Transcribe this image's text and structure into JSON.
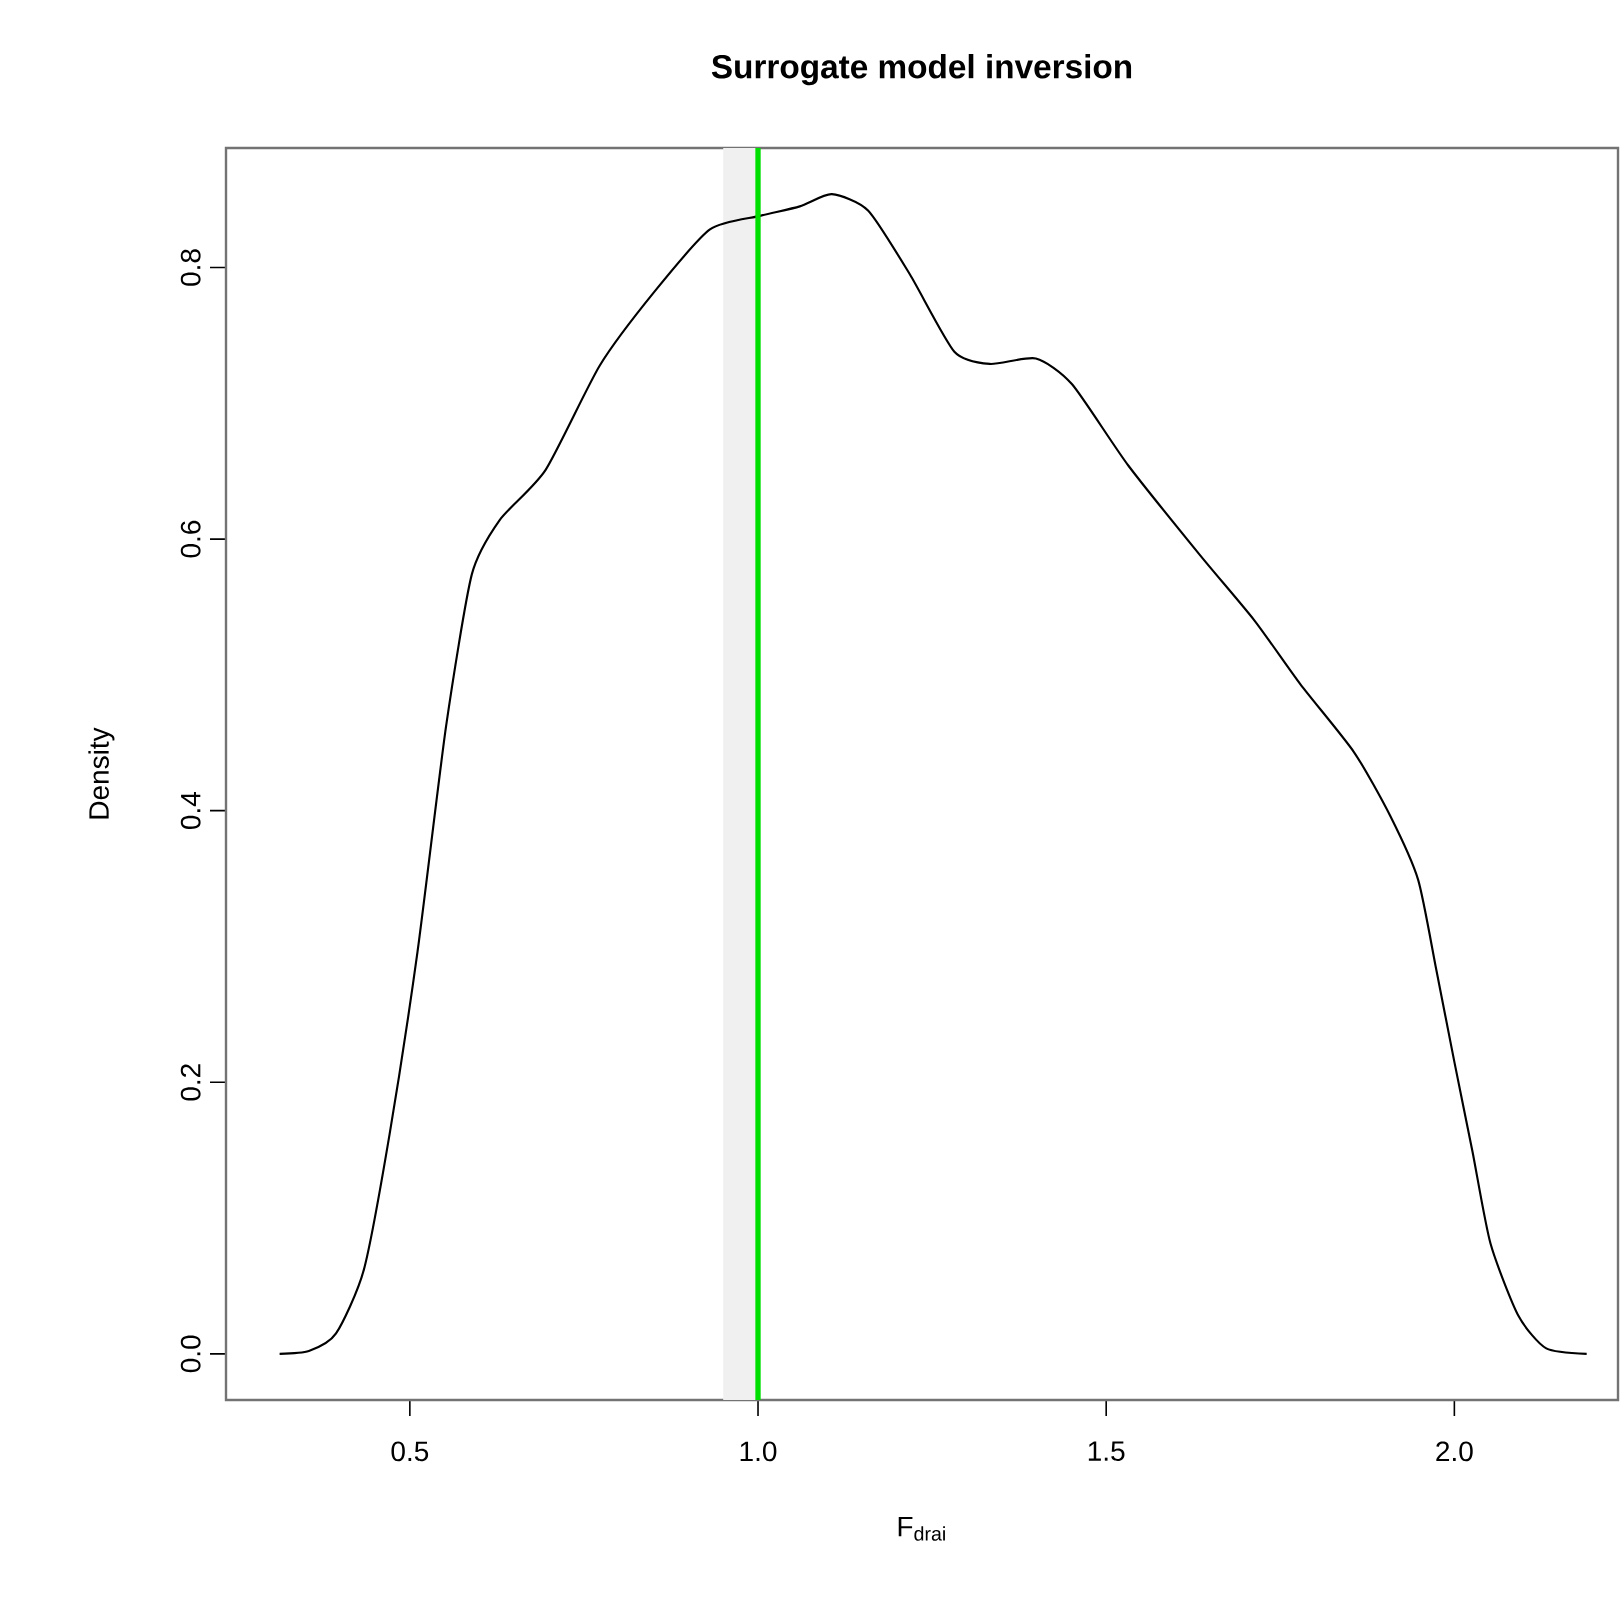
{
  "chart_data": {
    "type": "line",
    "title": "Surrogate model inversion",
    "xlabel": "F$_{drai}$",
    "ylabel": "Density",
    "x": [
      0.313,
      0.355,
      0.394,
      0.434,
      0.471,
      0.511,
      0.552,
      0.589,
      0.629,
      0.695,
      0.773,
      0.851,
      0.931,
      1.003,
      1.06,
      1.106,
      1.158,
      1.218,
      1.282,
      1.333,
      1.399,
      1.451,
      1.532,
      1.635,
      1.713,
      1.779,
      1.856,
      1.908,
      1.948,
      1.974,
      2.0,
      2.026,
      2.052,
      2.092,
      2.132,
      2.19
    ],
    "series": [
      {
        "color": "#000000",
        "values": [
          0,
          0.002,
          0.015,
          0.062,
          0.162,
          0.296,
          0.462,
          0.574,
          0.614,
          0.651,
          0.728,
          0.782,
          0.828,
          0.838,
          0.845,
          0.854,
          0.842,
          0.795,
          0.738,
          0.729,
          0.733,
          0.714,
          0.654,
          0.588,
          0.54,
          0.493,
          0.443,
          0.396,
          0.349,
          0.283,
          0.215,
          0.149,
          0.081,
          0.028,
          0.004,
          0
        ]
      }
    ],
    "xlim": [
      0.236,
      2.235
    ],
    "ylim": [
      -0.034,
      0.888
    ],
    "xticks": [
      {
        "value": 0.5,
        "label": "0.5"
      },
      {
        "value": 1.0,
        "label": "1.0"
      },
      {
        "value": 1.5,
        "label": "1.5"
      },
      {
        "value": 2.0,
        "label": "2.0"
      }
    ],
    "yticks": [
      {
        "value": 0.0,
        "label": "0.0"
      },
      {
        "value": 0.2,
        "label": "0.2"
      },
      {
        "value": 0.4,
        "label": "0.4"
      },
      {
        "value": 0.6,
        "label": "0.6"
      },
      {
        "value": 0.8,
        "label": "0.8"
      }
    ],
    "ref_lines": [
      {
        "axis": "x",
        "value": 1.0,
        "color": "#00e000"
      }
    ],
    "bands": [
      {
        "axis": "x",
        "from": 0.95,
        "to": 1.0,
        "color": "#f0f0f0"
      }
    ],
    "marker": "none",
    "line_style": "solid"
  }
}
